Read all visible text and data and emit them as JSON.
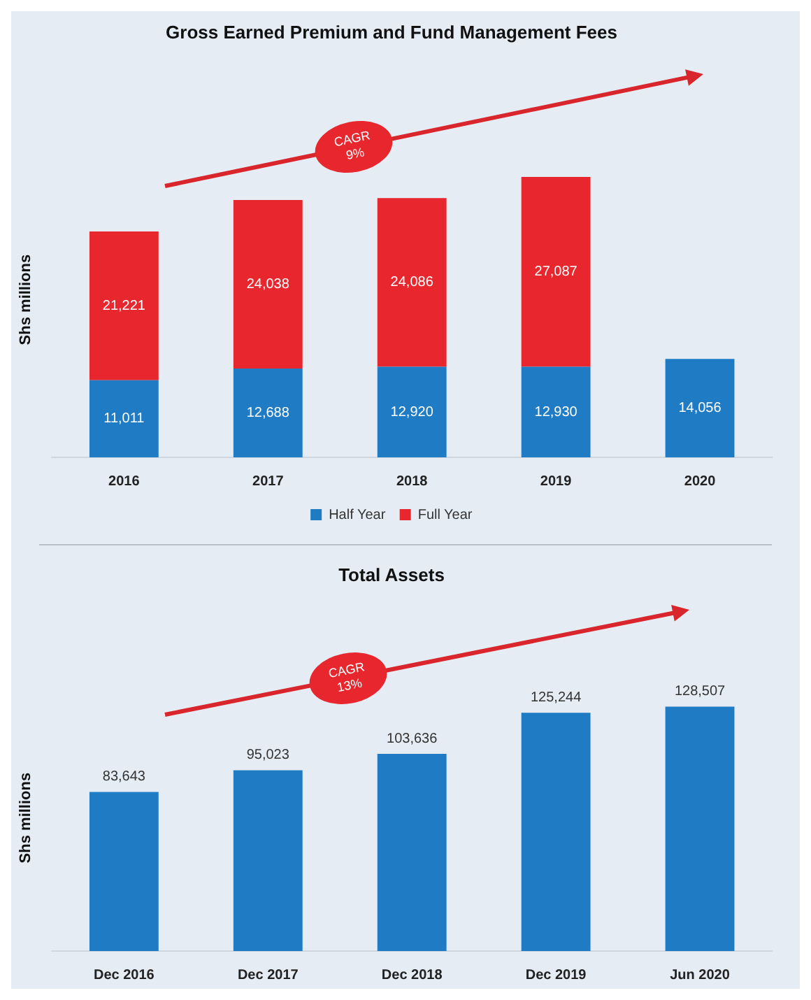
{
  "chart_data": [
    {
      "type": "bar",
      "title": "Gross Earned Premium and Fund Management Fees",
      "ylabel": "Shs millions",
      "categories": [
        "2016",
        "2017",
        "2018",
        "2019",
        "2020"
      ],
      "stacked": true,
      "series": [
        {
          "name": "Half Year",
          "color": "#1f7bc4",
          "values": [
            11011,
            12688,
            12920,
            12930,
            14056
          ],
          "value_labels": [
            "11,011",
            "12,688",
            "12,920",
            "12,930",
            "14,056"
          ]
        },
        {
          "name": "Full Year",
          "color": "#e8262d",
          "values": [
            21221,
            24038,
            24086,
            27087,
            null
          ],
          "value_labels": [
            "21,221",
            "24,038",
            "24,086",
            "27,087",
            null
          ]
        }
      ],
      "legend": "bottom",
      "tick_labels": "x",
      "grid": false,
      "annotations": [
        "CAGR 9%"
      ]
    },
    {
      "type": "bar",
      "title": "Total Assets",
      "ylabel": "Shs millions",
      "categories": [
        "Dec 2016",
        "Dec 2017",
        "Dec 2018",
        "Dec 2019",
        "Jun 2020"
      ],
      "series": [
        {
          "color": "#1f7bc4",
          "values": [
            83643,
            95023,
            103636,
            125244,
            128507
          ],
          "value_labels": [
            "83,643",
            "95,023",
            "103,636",
            "125,244",
            "128,507"
          ]
        }
      ],
      "legend": false,
      "tick_labels": "x",
      "grid": false,
      "annotations": [
        "CAGR 13%"
      ]
    }
  ]
}
